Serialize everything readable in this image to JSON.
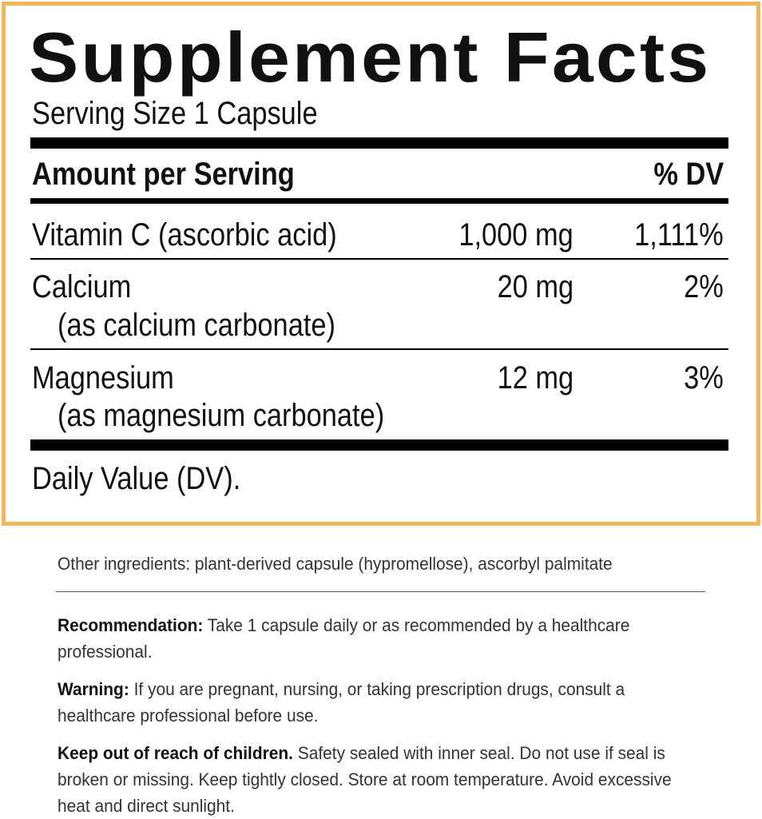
{
  "panel": {
    "title": "Supplement Facts",
    "serving_size": "Serving Size 1 Capsule",
    "header": {
      "amount": "Amount per Serving",
      "dv": "% DV"
    },
    "rows": [
      {
        "name": "Vitamin C (ascorbic acid)",
        "source": "",
        "amount": "1,000 mg",
        "dv": "1,111%"
      },
      {
        "name": "Calcium",
        "source": "(as calcium carbonate)",
        "amount": "20 mg",
        "dv": "2%"
      },
      {
        "name": "Magnesium",
        "source": "(as magnesium carbonate)",
        "amount": "12 mg",
        "dv": "3%"
      }
    ],
    "footnote": "Daily Value (DV).",
    "border_color": "#F2B75B"
  },
  "other_ingredients": "Other ingredients: plant-derived capsule (hypromellose), ascorbyl palmitate",
  "recommendation": {
    "label": "Recommendation:",
    "text": " Take 1 capsule daily or as recommended by a healthcare professional."
  },
  "warning": {
    "label": "Warning:",
    "text": " If you are pregnant, nursing, or taking prescription drugs, consult a healthcare professional before use."
  },
  "children": {
    "label": "Keep out of reach of children.",
    "text": " Safety sealed with inner seal. Do not use if seal is broken or missing. Keep tightly closed. Store at room temperature. Avoid excessive heat and direct sunlight."
  }
}
